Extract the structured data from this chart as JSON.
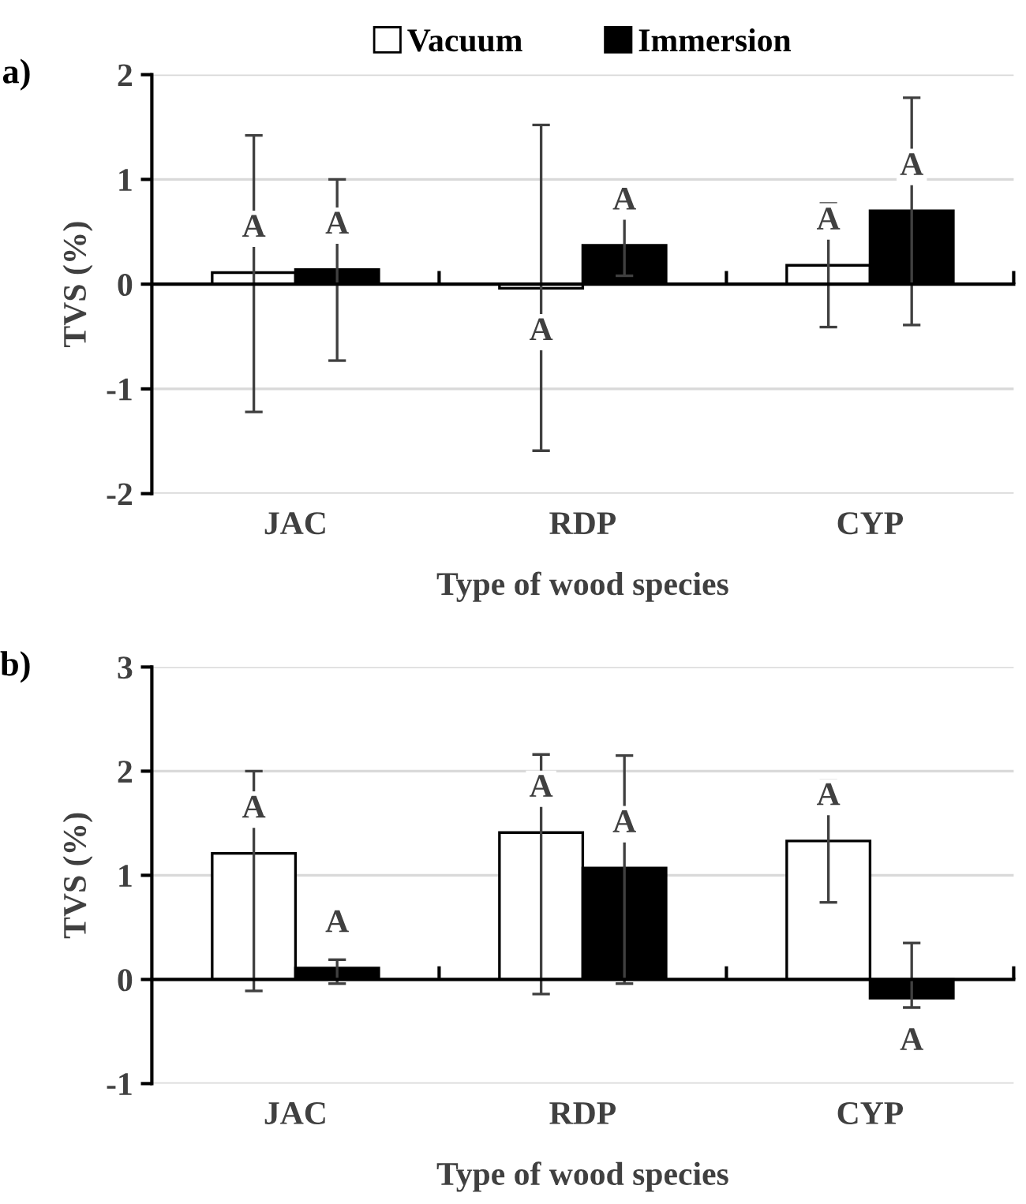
{
  "chart_data": [
    {
      "type": "bar",
      "title": "a)",
      "xlabel": "Type of wood species",
      "ylabel": "TVS (%)",
      "categories": [
        "JAC",
        "RDP",
        "CYP"
      ],
      "series": [
        {
          "name": "Vacuum",
          "color": "#ffffff",
          "values": [
            0.11,
            -0.04,
            0.18
          ],
          "errors": [
            [
              -1.22,
              1.42
            ],
            [
              -1.59,
              1.52
            ],
            [
              -0.41,
              0.77
            ]
          ],
          "value_labels": [
            "A",
            "A",
            "A"
          ]
        },
        {
          "name": "Immersion",
          "color": "#000000",
          "values": [
            0.14,
            0.37,
            0.7
          ],
          "errors": [
            [
              -0.73,
              1.0
            ],
            [
              0.08,
              0.66
            ],
            [
              -0.39,
              1.78
            ]
          ],
          "value_labels": [
            "A",
            "A",
            "A"
          ]
        }
      ],
      "ylim": [
        -2,
        2
      ],
      "yticks": [
        -2,
        -1,
        0,
        1,
        2
      ],
      "grid": "y",
      "legend": "top"
    },
    {
      "type": "bar",
      "title": "b)",
      "xlabel": "Type of wood species",
      "ylabel": "TVS (%)",
      "categories": [
        "JAC",
        "RDP",
        "CYP"
      ],
      "series": [
        {
          "color": "#ffffff",
          "values": [
            1.21,
            1.41,
            1.33
          ],
          "errors": [
            [
              -0.11,
              2.0
            ],
            [
              -0.14,
              2.16
            ],
            [
              0.74,
              1.91
            ]
          ],
          "value_labels": [
            "A",
            "A",
            "A"
          ]
        },
        {
          "color": "#000000",
          "values": [
            0.11,
            1.07,
            -0.18
          ],
          "errors": [
            [
              -0.04,
              0.19
            ],
            [
              -0.04,
              2.15
            ],
            [
              -0.27,
              0.35
            ]
          ],
          "value_labels": [
            "A",
            "A",
            "A"
          ]
        }
      ],
      "ylim": [
        -1,
        3
      ],
      "yticks": [
        -1,
        0,
        1,
        2,
        3
      ],
      "grid": "y"
    }
  ]
}
